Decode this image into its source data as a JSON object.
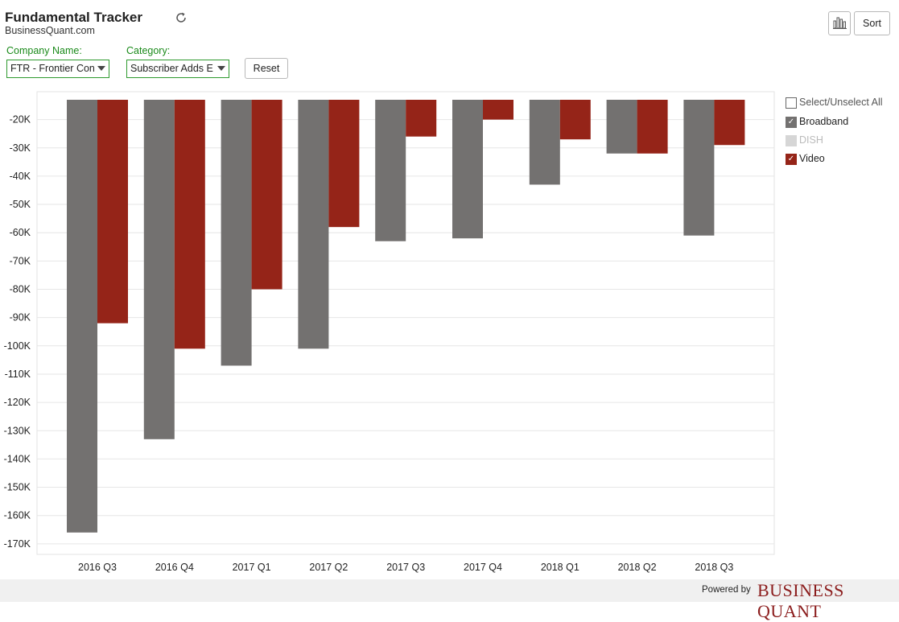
{
  "header": {
    "title": "Fundamental Tracker",
    "subtitle": "BusinessQuant.com",
    "sort_label": "Sort"
  },
  "filters": {
    "company_label": "Company Name:",
    "company_value": "FTR - Frontier Con",
    "category_label": "Category:",
    "category_value": "Subscriber Adds E",
    "reset_label": "Reset"
  },
  "legend": {
    "select_all_label": "Select/Unselect All",
    "items": [
      {
        "label": "Broadband",
        "checked": true,
        "color": "#737170"
      },
      {
        "label": "DISH",
        "checked": false,
        "color": "#cccccc"
      },
      {
        "label": "Video",
        "checked": true,
        "color": "#952418"
      }
    ]
  },
  "footer": {
    "powered_by": "Powered by",
    "brand": "BUSINESS QUANT"
  },
  "chart_data": {
    "type": "bar",
    "categories": [
      "2016 Q3",
      "2016 Q4",
      "2017 Q1",
      "2017 Q2",
      "2017 Q3",
      "2017 Q4",
      "2018 Q1",
      "2018 Q2",
      "2018 Q3"
    ],
    "series": [
      {
        "name": "Broadband",
        "color": "#737170",
        "values": [
          -166000,
          -133000,
          -107000,
          -101000,
          -63000,
          -62000,
          -43000,
          -32000,
          -61000
        ]
      },
      {
        "name": "Video",
        "color": "#952418",
        "values": [
          -92000,
          -101000,
          -80000,
          -58000,
          -26000,
          -20000,
          -27000,
          -32000,
          -29000
        ]
      }
    ],
    "y_ticks": [
      "-20K",
      "-30K",
      "-40K",
      "-50K",
      "-60K",
      "-70K",
      "-80K",
      "-90K",
      "-100K",
      "-110K",
      "-120K",
      "-130K",
      "-140K",
      "-150K",
      "-160K",
      "-170K"
    ],
    "ylim": [
      -173000,
      -13000
    ],
    "grid": true
  }
}
